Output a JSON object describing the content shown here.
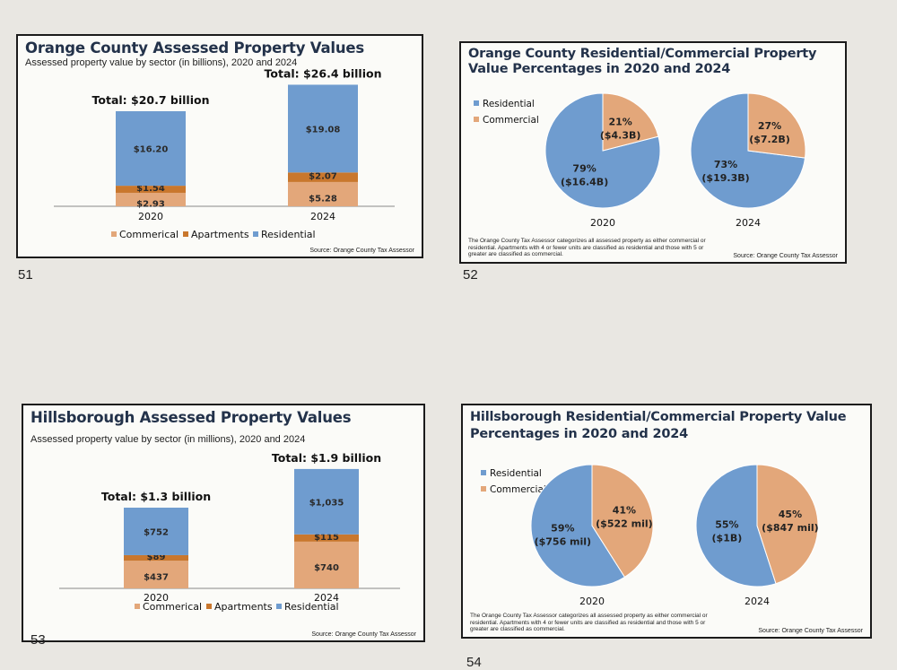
{
  "colors": {
    "residential": "#6f9ccf",
    "commercial": "#e3a77a",
    "apartments": "#c9772d",
    "title": "#23324a"
  },
  "page_numbers": [
    "51",
    "52",
    "53",
    "54"
  ],
  "charts": [
    {
      "title": "Orange County Assessed Property Values",
      "subtitle": "Assessed property value by sector (in billions), 2020 and 2024",
      "source": "Source: Orange County Tax Assessor",
      "legend": [
        "Commerical",
        "Apartments",
        "Residential"
      ]
    },
    {
      "title": "Orange County Residential/Commercial Property Value Percentages in 2020 and 2024",
      "legend": [
        "Residential",
        "Commercial"
      ],
      "note": "The Orange County Tax Assessor categorizes all assessed property as either commercial or residential. Apartments with 4 or fewer units are classified as residential and those with 5 or greater are classified as commercial.",
      "source": "Source: Orange County Tax Assessor"
    },
    {
      "title": "Hillsborough Assessed Property Values",
      "subtitle": "Assessed property value by sector (in millions), 2020 and 2024",
      "source": "Source: Orange County Tax Assessor",
      "legend": [
        "Commerical",
        "Apartments",
        "Residential"
      ]
    },
    {
      "title": "Hillsborough Residential/Commercial Property Value Percentages in 2020 and 2024",
      "legend": [
        "Residential",
        "Commercial"
      ],
      "note": "The Orange County Tax Assessor categorizes all assessed property as either commercial or residential. Apartments with 4 or fewer units are classified as residential and those with 5 or greater are classified as commercial.",
      "source": "Source: Orange County Tax Assessor"
    }
  ],
  "chart_data": [
    {
      "type": "bar",
      "stacked": true,
      "title": "Orange County Assessed Property Values",
      "subtitle": "Assessed property value by sector (in billions), 2020 and 2024",
      "categories": [
        "2020",
        "2024"
      ],
      "totals": [
        "Total: $20.7 billion",
        "Total: $26.4 billion"
      ],
      "series": [
        {
          "name": "Commerical",
          "values": [
            2.93,
            5.28
          ],
          "labels": [
            "$2.93",
            "$5.28"
          ]
        },
        {
          "name": "Apartments",
          "values": [
            1.54,
            2.07
          ],
          "labels": [
            "$1.54",
            "$2.07"
          ]
        },
        {
          "name": "Residential",
          "values": [
            16.2,
            19.08
          ],
          "labels": [
            "$16.20",
            "$19.08"
          ]
        }
      ],
      "ylim": [
        0,
        28
      ],
      "legend": "bottom"
    },
    {
      "type": "pie",
      "title": "Orange County Residential/Commercial Property Value Percentages in 2020 and 2024",
      "legend": "top-left",
      "pies": [
        {
          "label": "2020",
          "slices": [
            {
              "name": "Residential",
              "value": 79,
              "text": [
                "79%",
                "($16.4B)"
              ]
            },
            {
              "name": "Commercial",
              "value": 21,
              "text": [
                "21%",
                "($4.3B)"
              ]
            }
          ]
        },
        {
          "label": "2024",
          "slices": [
            {
              "name": "Residential",
              "value": 73,
              "text": [
                "73%",
                "($19.3B)"
              ]
            },
            {
              "name": "Commercial",
              "value": 27,
              "text": [
                "27%",
                "($7.2B)"
              ]
            }
          ]
        }
      ]
    },
    {
      "type": "bar",
      "stacked": true,
      "title": "Hillsborough Assessed Property Values",
      "subtitle": "Assessed property value by sector (in millions), 2020 and 2024",
      "categories": [
        "2020",
        "2024"
      ],
      "totals": [
        "Total: $1.3 billion",
        "Total: $1.9 billion"
      ],
      "series": [
        {
          "name": "Commerical",
          "values": [
            437,
            740
          ],
          "labels": [
            "$437",
            "$740"
          ]
        },
        {
          "name": "Apartments",
          "values": [
            89,
            115
          ],
          "labels": [
            "$89",
            "$115"
          ]
        },
        {
          "name": "Residential",
          "values": [
            752,
            1035
          ],
          "labels": [
            "$752",
            "$1,035"
          ]
        }
      ],
      "ylim": [
        0,
        2000
      ],
      "legend": "bottom"
    },
    {
      "type": "pie",
      "title": "Hillsborough Residential/Commercial Property Value Percentages in 2020 and 2024",
      "legend": "top-left",
      "pies": [
        {
          "label": "2020",
          "slices": [
            {
              "name": "Residential",
              "value": 59,
              "text": [
                "59%",
                "($756 mil)"
              ]
            },
            {
              "name": "Commercial",
              "value": 41,
              "text": [
                "41%",
                "($522 mil)"
              ]
            }
          ]
        },
        {
          "label": "2024",
          "slices": [
            {
              "name": "Residential",
              "value": 55,
              "text": [
                "55%",
                "($1B)"
              ]
            },
            {
              "name": "Commercial",
              "value": 45,
              "text": [
                "45%",
                "($847 mil)"
              ]
            }
          ]
        }
      ]
    }
  ]
}
